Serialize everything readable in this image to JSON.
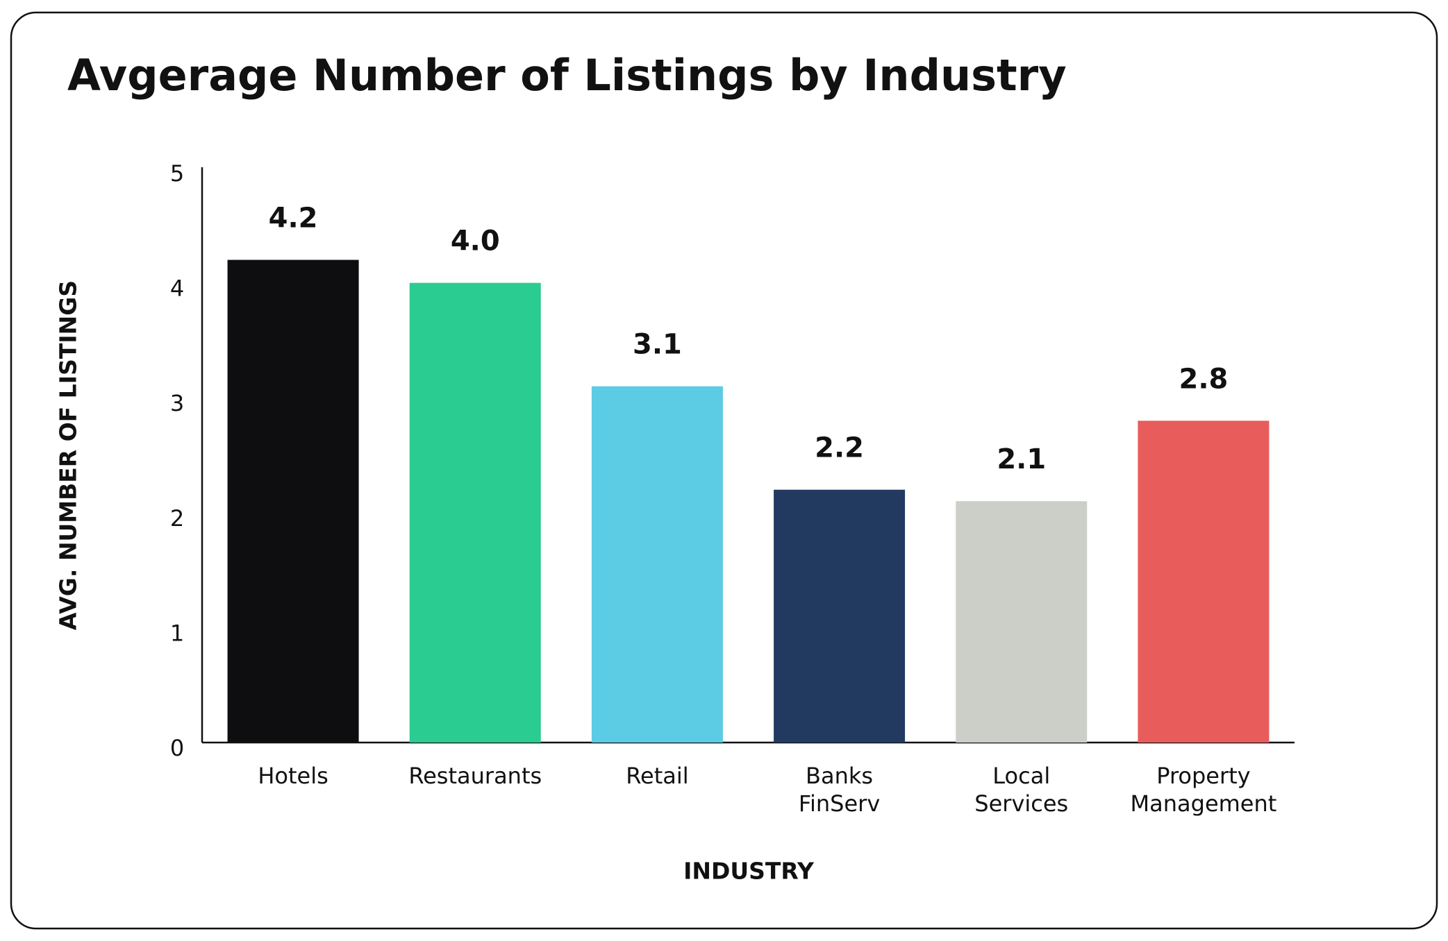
{
  "chart_data": {
    "type": "bar",
    "title": "Avgerage Number of Listings by Industry",
    "x_label": "INDUSTRY",
    "y_label": "AVG. NUMBER OF LISTINGS",
    "categories": [
      "Hotels",
      "Restaurants",
      "Retail",
      "Banks FinServ",
      "Local Services",
      "Property Management"
    ],
    "values": [
      4.2,
      4.0,
      3.1,
      2.2,
      2.1,
      2.8
    ],
    "value_labels": [
      "4.2",
      "4.0",
      "3.1",
      "2.2",
      "2.1",
      "2.8"
    ],
    "colors": [
      "#0e0e10",
      "#2bcc91",
      "#5ccbe4",
      "#223a60",
      "#cbcfc8",
      "#e85c5c"
    ],
    "ylim": [
      0,
      5
    ],
    "yticks": [
      0,
      1,
      2,
      3,
      4,
      5
    ],
    "grid": false
  }
}
